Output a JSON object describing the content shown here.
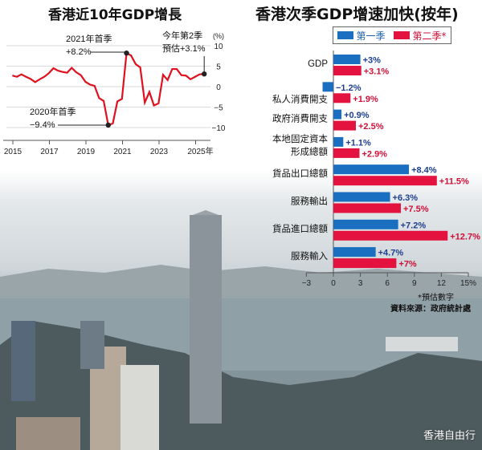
{
  "chart_data": [
    {
      "type": "line",
      "title": "香港近10年GDP增長",
      "ylabel": "(%)",
      "ylim": [
        -12,
        11
      ],
      "yticks": [
        10,
        5,
        0,
        -5,
        -10
      ],
      "xticks": [
        "2015",
        "2017",
        "2019",
        "2021",
        "2023",
        "2025年"
      ],
      "color": "#e0101e",
      "series": [
        {
          "x": [
            "2014Q4",
            "2015Q1",
            "2015Q2",
            "2015Q3",
            "2015Q4",
            "2016Q1",
            "2016Q2",
            "2016Q3",
            "2016Q4",
            "2017Q1",
            "2017Q2",
            "2017Q3",
            "2017Q4",
            "2018Q1",
            "2018Q2",
            "2018Q3",
            "2018Q4",
            "2019Q1",
            "2019Q2",
            "2019Q3",
            "2019Q4",
            "2020Q1",
            "2020Q2",
            "2020Q3",
            "2020Q4",
            "2021Q1",
            "2021Q2",
            "2021Q3",
            "2021Q4",
            "2022Q1",
            "2022Q2",
            "2022Q3",
            "2022Q4",
            "2023Q1",
            "2023Q2",
            "2023Q3",
            "2023Q4",
            "2024Q1",
            "2024Q2",
            "2024Q3",
            "2024Q4",
            "2025Q1",
            "2025Q2"
          ],
          "values": [
            2.7,
            2.4,
            3.0,
            2.4,
            1.9,
            1.1,
            1.8,
            2.4,
            3.3,
            4.5,
            3.9,
            3.6,
            3.4,
            4.6,
            3.5,
            2.8,
            1.2,
            0.5,
            0.2,
            -2.8,
            -3.5,
            -9.4,
            -9.0,
            -3.6,
            -3.0,
            8.2,
            7.6,
            5.5,
            4.7,
            -3.9,
            -1.3,
            -4.6,
            -4.1,
            2.9,
            1.6,
            4.3,
            4.3,
            2.8,
            2.7,
            1.8,
            2.4,
            3.0,
            3.1
          ]
        }
      ],
      "annotations": [
        {
          "line1": "2021年首季",
          "line2": "+8.2%"
        },
        {
          "line1": "2020年首季",
          "line2": "−9.4%"
        },
        {
          "line1": "今年第2季",
          "line2": "預估+3.1%"
        }
      ]
    },
    {
      "type": "bar",
      "orientation": "horizontal",
      "title": "香港次季GDP增速加快(按年)",
      "xlim": [
        -3,
        15
      ],
      "xticks": [
        "−3",
        "0",
        "3",
        "6",
        "9",
        "12",
        "15%"
      ],
      "categories": [
        "GDP",
        "私人消費開支",
        "政府消費開支",
        "本地固定資本\n形成總額",
        "貨品出口總額",
        "服務輸出",
        "貨品進口總額",
        "服務輸入"
      ],
      "series": [
        {
          "name": "第一季",
          "color": "#1a6fc0",
          "values": [
            3,
            -1.2,
            0.9,
            1.1,
            8.4,
            6.3,
            7.2,
            4.7
          ],
          "labels": [
            "+3%",
            "−1.2%",
            "+0.9%",
            "+1.1%",
            "+8.4%",
            "+6.3%",
            "+7.2%",
            "+4.7%"
          ]
        },
        {
          "name": "第二季*",
          "color": "#e3123e",
          "values": [
            3.1,
            1.9,
            2.5,
            2.9,
            11.5,
            7.5,
            12.7,
            7
          ],
          "labels": [
            "+3.1%",
            "+1.9%",
            "+2.5%",
            "+2.9%",
            "+11.5%",
            "+7.5%",
            "+12.7%",
            "+7%"
          ]
        }
      ],
      "note": "*預估數字",
      "source": "資料來源：政府統計處"
    }
  ],
  "watermark": "香港自由行"
}
